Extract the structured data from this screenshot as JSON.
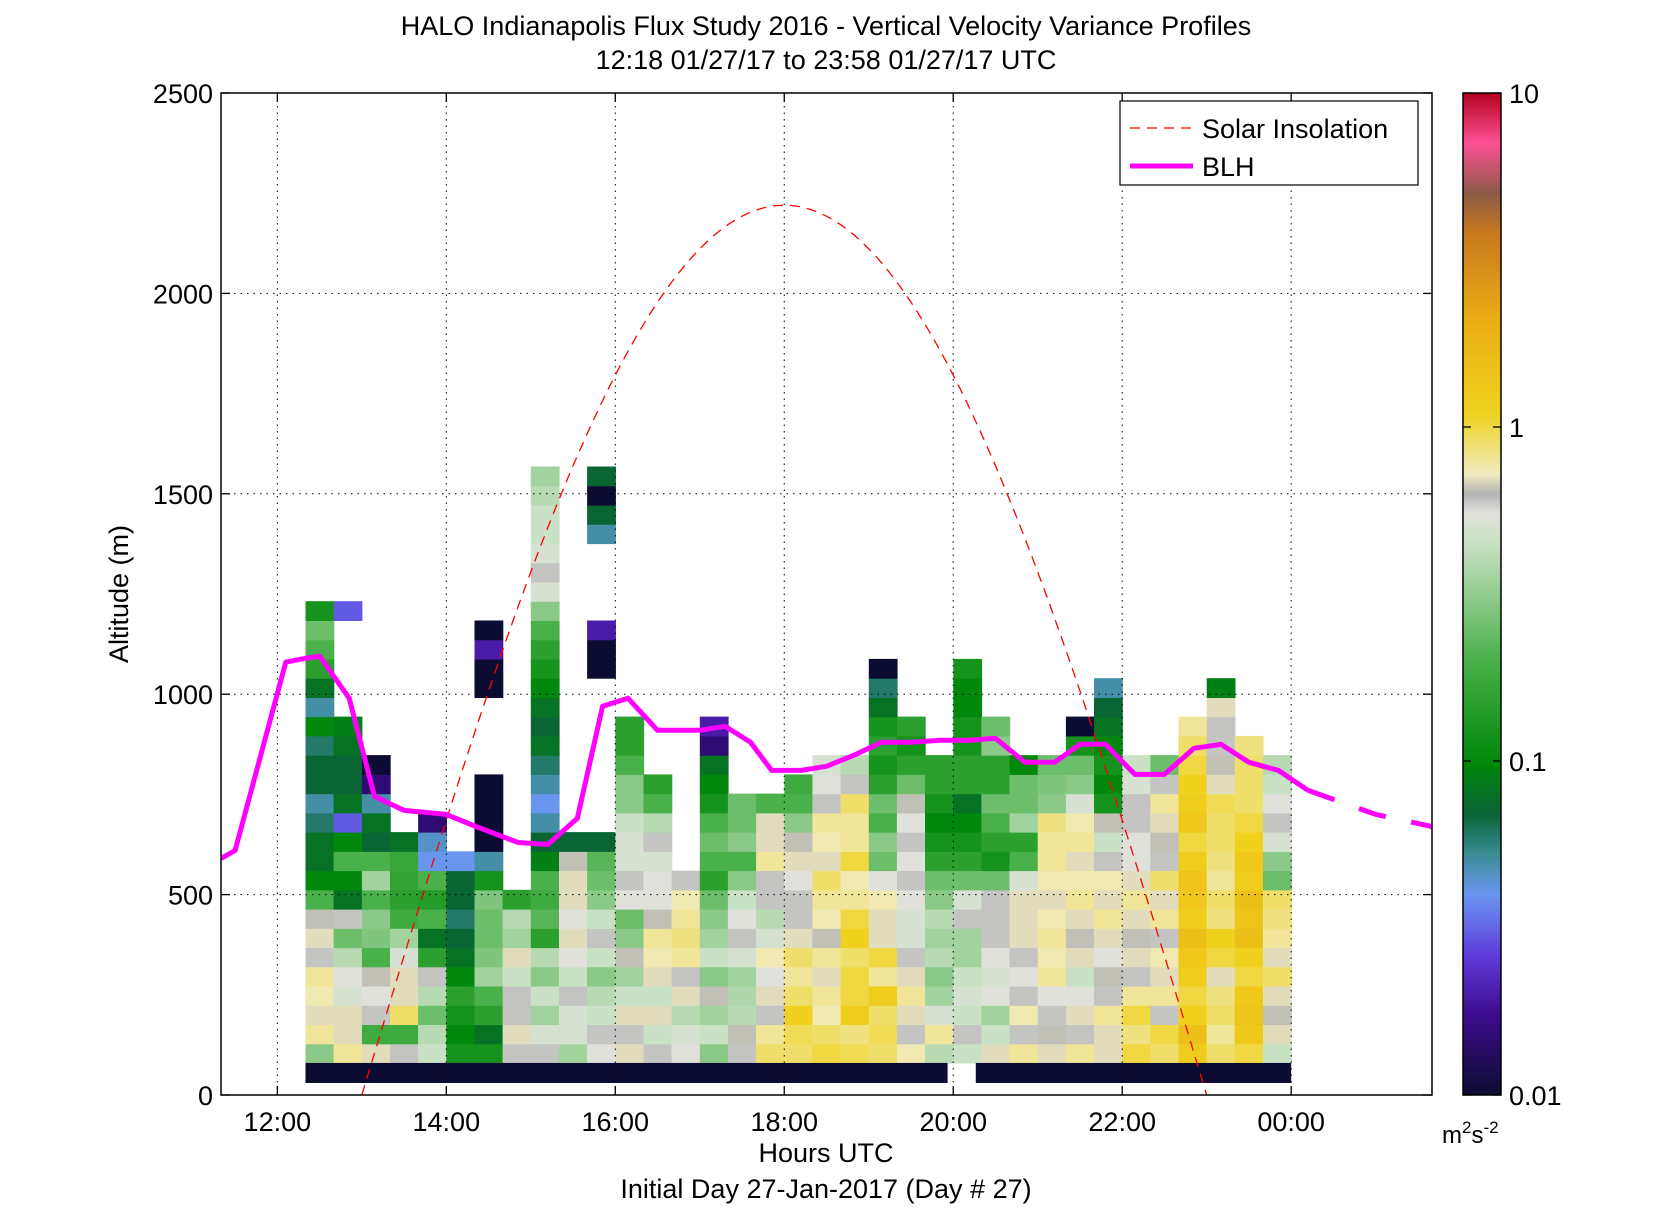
{
  "chart_data": {
    "type": "heatmap",
    "title": "HALO Indianapolis Flux Study 2016 - Vertical Velocity Variance Profiles",
    "subtitle": "12:18 01/27/17 to 23:58 01/27/17  UTC",
    "xlabel": "Hours UTC",
    "ylabel": "Altitude (m)",
    "footer": "Initial Day 27-Jan-2017 (Day # 27)",
    "x_range_hours": [
      11.333,
      25.667
    ],
    "y_range": [
      0,
      2500
    ],
    "x_ticks": [
      {
        "value": 12,
        "label": "12:00"
      },
      {
        "value": 14,
        "label": "14:00"
      },
      {
        "value": 16,
        "label": "16:00"
      },
      {
        "value": 18,
        "label": "18:00"
      },
      {
        "value": 20,
        "label": "20:00"
      },
      {
        "value": 22,
        "label": "22:00"
      },
      {
        "value": 24,
        "label": "00:00"
      }
    ],
    "y_ticks": [
      0,
      500,
      1000,
      1500,
      2000,
      2500
    ],
    "grid": true,
    "legend_position": "top-right",
    "legend": [
      {
        "label": "Solar Insolation",
        "color": "#ff0000",
        "style": "dashed"
      },
      {
        "label": "BLH",
        "color": "#ff00ff",
        "style": "solid"
      }
    ],
    "colorbar": {
      "scale": "log",
      "range": [
        0.01,
        10
      ],
      "ticks": [
        "0.01",
        "0.1",
        "1",
        "10"
      ],
      "unit_main": "m",
      "unit_sup1": "2",
      "unit_mid": "s",
      "unit_sup2": "-2"
    },
    "heatmap_bin_height_m": 48,
    "heatmap_columns": [
      {
        "t": 12.5,
        "levels": [
          0.3,
          0.8,
          0.7,
          0.75,
          0.8,
          0.6,
          0.7,
          0.65,
          0.2,
          0.1,
          0.08,
          0.08,
          0.06,
          0.05,
          0.07,
          0.07,
          0.06,
          0.1,
          0.05,
          0.08,
          0.15,
          0.2,
          0.25,
          0.12
        ]
      },
      {
        "t": 12.833,
        "levels": [
          0.8,
          0.7,
          0.7,
          0.5,
          0.55,
          0.4,
          0.25,
          0.6,
          0.08,
          0.1,
          0.2,
          0.1,
          0.03,
          0.08,
          0.07,
          0.07,
          0.08,
          0.09,
          0.0,
          0.0,
          0.0,
          0.0,
          0.0,
          0.03
        ]
      },
      {
        "t": 13.167,
        "levels": [
          0.7,
          0.18,
          0.6,
          0.55,
          0.65,
          0.2,
          0.28,
          0.3,
          0.2,
          0.35,
          0.2,
          0.07,
          0.08,
          0.05,
          0.015,
          0.01
        ]
      },
      {
        "t": 13.5,
        "levels": [
          0.6,
          0.18,
          0.9,
          0.7,
          0.7,
          0.5,
          0.35,
          0.18,
          0.15,
          0.16,
          0.17,
          0.08
        ]
      },
      {
        "t": 13.833,
        "levels": [
          0.45,
          0.4,
          0.25,
          0.4,
          0.6,
          0.15,
          0.08,
          0.2,
          0.14,
          0.2,
          0.04,
          0.045,
          0.015
        ]
      },
      {
        "t": 14.167,
        "levels": [
          0.12,
          0.1,
          0.12,
          0.15,
          0.1,
          0.08,
          0.07,
          0.06,
          0.07,
          0.07,
          0.04
        ]
      },
      {
        "t": 14.5,
        "levels": [
          0.12,
          0.08,
          0.15,
          0.2,
          0.35,
          0.28,
          0.25,
          0.25,
          0.28,
          0.12,
          0.05,
          0.01,
          0.01,
          0.01,
          0.01,
          0.0,
          0.0,
          0.0,
          0.0,
          0.01,
          0.01,
          0.02,
          0.01
        ]
      },
      {
        "t": 14.833,
        "levels": [
          0.6,
          0.7,
          0.6,
          0.6,
          0.45,
          0.7,
          0.35,
          0.4,
          0.15
        ]
      },
      {
        "t": 15.167,
        "levels": [
          0.6,
          0.5,
          0.35,
          0.45,
          0.3,
          0.4,
          0.15,
          0.22,
          0.18,
          0.2,
          0.09,
          0.07,
          0.05,
          0.04,
          0.05,
          0.06,
          0.08,
          0.07,
          0.08,
          0.1,
          0.12,
          0.15,
          0.2,
          0.3,
          0.5,
          0.6,
          0.5,
          0.45,
          0.45,
          0.4,
          0.35
        ]
      },
      {
        "t": 15.5,
        "levels": [
          0.35,
          0.5,
          0.5,
          0.6,
          0.45,
          0.55,
          0.7,
          0.55,
          0.7,
          0.7,
          0.65,
          0.07
        ]
      },
      {
        "t": 15.833,
        "levels": [
          0.55,
          0.6,
          0.45,
          0.4,
          0.3,
          0.45,
          0.6,
          0.45,
          0.3,
          0.25,
          0.22,
          0.07,
          0.0,
          0.0,
          0.0,
          0.0,
          0.0,
          0.0,
          0.0,
          0.0,
          0.01,
          0.01,
          0.02,
          0.0,
          0.0,
          0.0,
          0.0,
          0.05,
          0.07,
          0.01,
          0.07
        ]
      },
      {
        "t": 16.167,
        "levels": [
          0.7,
          0.6,
          0.7,
          0.45,
          0.35,
          0.65,
          0.3,
          0.25,
          0.55,
          0.6,
          0.5,
          0.5,
          0.45,
          0.3,
          0.3,
          0.2,
          0.15,
          0.15
        ]
      },
      {
        "t": 16.5,
        "levels": [
          0.6,
          0.45,
          0.7,
          0.45,
          0.7,
          0.75,
          0.8,
          0.65,
          0.55,
          0.55,
          0.5,
          0.6,
          0.4,
          0.2,
          0.15
        ]
      },
      {
        "t": 16.833,
        "levels": [
          0.55,
          0.5,
          0.4,
          0.7,
          0.6,
          0.8,
          0.85,
          0.8,
          0.75,
          0.6
        ]
      },
      {
        "t": 17.167,
        "levels": [
          0.3,
          0.45,
          0.35,
          0.65,
          0.3,
          0.45,
          0.35,
          0.3,
          0.25,
          0.15,
          0.2,
          0.25,
          0.2,
          0.12,
          0.1,
          0.08,
          0.015,
          0.02
        ]
      },
      {
        "t": 17.5,
        "levels": [
          0.6,
          0.65,
          0.4,
          0.38,
          0.35,
          0.5,
          0.6,
          0.55,
          0.45,
          0.3,
          0.2,
          0.3,
          0.25,
          0.25
        ]
      },
      {
        "t": 17.833,
        "levels": [
          0.9,
          0.8,
          0.6,
          0.7,
          0.55,
          0.75,
          0.5,
          0.4,
          0.6,
          0.6,
          0.8,
          0.7,
          0.7,
          0.2
        ]
      },
      {
        "t": 18.167,
        "levels": [
          0.9,
          0.95,
          1.1,
          0.9,
          0.8,
          0.9,
          0.7,
          0.6,
          0.6,
          0.55,
          0.7,
          0.65,
          0.3,
          0.2,
          0.18
        ]
      },
      {
        "t": 18.5,
        "levels": [
          1.0,
          0.9,
          0.75,
          0.8,
          0.7,
          0.8,
          0.65,
          0.75,
          0.8,
          0.9,
          0.7,
          0.75,
          0.8,
          0.6,
          0.55,
          0.5
        ]
      },
      {
        "t": 18.833,
        "levels": [
          0.95,
          0.85,
          1.2,
          1.0,
          1.0,
          0.9,
          1.1,
          1.0,
          0.8,
          0.75,
          1.0,
          0.8,
          0.8,
          0.9,
          0.6,
          0.4
        ]
      },
      {
        "t": 19.167,
        "levels": [
          0.9,
          0.95,
          0.9,
          1.2,
          0.8,
          1.0,
          0.7,
          0.7,
          0.75,
          0.55,
          0.25,
          0.3,
          0.2,
          0.25,
          0.15,
          0.12,
          0.15,
          0.12,
          0.08,
          0.06,
          0.01
        ]
      },
      {
        "t": 19.5,
        "levels": [
          0.75,
          0.6,
          0.7,
          0.8,
          0.7,
          0.6,
          0.5,
          0.5,
          0.55,
          0.6,
          0.55,
          0.6,
          0.55,
          0.65,
          0.25,
          0.15,
          0.12,
          0.15
        ]
      },
      {
        "t": 19.833,
        "levels": [
          0.4,
          0.8,
          0.5,
          0.35,
          0.3,
          0.4,
          0.35,
          0.4,
          0.3,
          0.25,
          0.15,
          0.12,
          0.1,
          0.12,
          0.15,
          0.15
        ]
      },
      {
        "t": 20.167,
        "levels": [
          0.45,
          0.6,
          0.45,
          0.5,
          0.45,
          0.35,
          0.35,
          0.6,
          0.5,
          0.25,
          0.15,
          0.12,
          0.1,
          0.08,
          0.15,
          0.15,
          0.12,
          0.12,
          0.1,
          0.1,
          0.12
        ]
      },
      {
        "t": 20.5,
        "levels": [
          0.7,
          0.45,
          0.35,
          0.55,
          0.5,
          0.55,
          0.6,
          0.6,
          0.6,
          0.25,
          0.12,
          0.15,
          0.2,
          0.25,
          0.15,
          0.15,
          0.3,
          0.25
        ]
      },
      {
        "t": 20.833,
        "levels": [
          0.8,
          0.6,
          0.75,
          0.6,
          0.55,
          0.6,
          0.7,
          0.7,
          0.7,
          0.5,
          0.2,
          0.15,
          0.35,
          0.25,
          0.25,
          0.1
        ]
      },
      {
        "t": 21.167,
        "levels": [
          0.7,
          0.65,
          0.6,
          0.55,
          0.8,
          0.75,
          0.8,
          0.75,
          0.7,
          0.75,
          0.8,
          0.8,
          0.85,
          0.3,
          0.28,
          0.25
        ]
      },
      {
        "t": 21.5,
        "levels": [
          0.8,
          0.6,
          0.7,
          0.55,
          0.45,
          0.7,
          0.65,
          0.7,
          0.8,
          0.75,
          0.7,
          0.8,
          0.75,
          0.5,
          0.3,
          0.25,
          0.12,
          0.01
        ]
      },
      {
        "t": 21.833,
        "levels": [
          0.7,
          0.7,
          0.8,
          0.6,
          0.65,
          0.55,
          0.7,
          0.8,
          0.7,
          0.75,
          0.6,
          0.45,
          0.65,
          0.12,
          0.1,
          0.12,
          0.1,
          0.08,
          0.07,
          0.05
        ]
      },
      {
        "t": 22.167,
        "levels": [
          1.0,
          0.85,
          1.0,
          0.8,
          0.6,
          0.7,
          0.65,
          0.7,
          0.8,
          0.7,
          0.55,
          0.55,
          0.6,
          0.6,
          0.5,
          0.45
        ]
      },
      {
        "t": 22.5,
        "levels": [
          0.9,
          1.0,
          0.6,
          0.8,
          0.7,
          0.75,
          0.6,
          0.8,
          0.7,
          0.9,
          0.6,
          0.65,
          0.7,
          0.8,
          0.6,
          0.25
        ]
      },
      {
        "t": 22.833,
        "levels": [
          1.2,
          1.5,
          1.1,
          1.0,
          1.2,
          1.3,
          1.5,
          1.2,
          1.3,
          1.4,
          1.2,
          1.0,
          1.3,
          1.2,
          1.1,
          1.0,
          0.9,
          0.8
        ]
      },
      {
        "t": 23.167,
        "levels": [
          0.9,
          0.8,
          0.9,
          0.85,
          0.7,
          1.0,
          1.1,
          0.85,
          0.9,
          0.8,
          0.85,
          0.9,
          0.9,
          0.95,
          0.7,
          0.65,
          0.6,
          0.6,
          0.7,
          0.09
        ]
      },
      {
        "t": 23.5,
        "levels": [
          1.0,
          1.3,
          1.4,
          1.3,
          1.0,
          1.1,
          1.5,
          1.4,
          1.5,
          1.2,
          1.3,
          1.1,
          1.0,
          0.9,
          0.9,
          0.9,
          0.85
        ]
      },
      {
        "t": 23.833,
        "levels": [
          0.45,
          0.7,
          0.65,
          0.7,
          0.9,
          0.7,
          0.8,
          0.85,
          0.9,
          0.25,
          0.3,
          0.5,
          0.6,
          0.55,
          0.45,
          0.4
        ]
      }
    ],
    "no_data_bars": [
      {
        "t_start": 12.333,
        "t_end": 19.933
      },
      {
        "t_start": 20.267,
        "t_end": 24.0
      }
    ],
    "solar_insolation_curve": [
      {
        "t": 13.0,
        "alt": 0
      },
      {
        "t": 18.0,
        "alt": 2220
      },
      {
        "t": 23.0,
        "alt": 0
      }
    ],
    "blh_series": [
      {
        "t": 11.333,
        "alt": 590
      },
      {
        "t": 11.5,
        "alt": 610
      },
      {
        "t": 12.1,
        "alt": 1080
      },
      {
        "t": 12.35,
        "alt": 1090
      },
      {
        "t": 12.5,
        "alt": 1095
      },
      {
        "t": 12.85,
        "alt": 990
      },
      {
        "t": 13.15,
        "alt": 745
      },
      {
        "t": 13.5,
        "alt": 710
      },
      {
        "t": 14.0,
        "alt": 700
      },
      {
        "t": 14.35,
        "alt": 670
      },
      {
        "t": 14.85,
        "alt": 630
      },
      {
        "t": 15.2,
        "alt": 625
      },
      {
        "t": 15.55,
        "alt": 690
      },
      {
        "t": 15.85,
        "alt": 970
      },
      {
        "t": 16.15,
        "alt": 990
      },
      {
        "t": 16.5,
        "alt": 910
      },
      {
        "t": 17.0,
        "alt": 910
      },
      {
        "t": 17.3,
        "alt": 920
      },
      {
        "t": 17.6,
        "alt": 880
      },
      {
        "t": 17.85,
        "alt": 810
      },
      {
        "t": 18.2,
        "alt": 810
      },
      {
        "t": 18.5,
        "alt": 820
      },
      {
        "t": 18.85,
        "alt": 850
      },
      {
        "t": 19.15,
        "alt": 880
      },
      {
        "t": 19.5,
        "alt": 880
      },
      {
        "t": 19.85,
        "alt": 885
      },
      {
        "t": 20.2,
        "alt": 885
      },
      {
        "t": 20.5,
        "alt": 890
      },
      {
        "t": 20.85,
        "alt": 830
      },
      {
        "t": 21.2,
        "alt": 830
      },
      {
        "t": 21.5,
        "alt": 875
      },
      {
        "t": 21.8,
        "alt": 875
      },
      {
        "t": 22.15,
        "alt": 800
      },
      {
        "t": 22.5,
        "alt": 800
      },
      {
        "t": 22.85,
        "alt": 865
      },
      {
        "t": 23.17,
        "alt": 875
      },
      {
        "t": 23.5,
        "alt": 830
      },
      {
        "t": 23.85,
        "alt": 810
      },
      {
        "t": 24.2,
        "alt": 760
      },
      {
        "t": 25.0,
        "alt": 700
      },
      {
        "t": 25.667,
        "alt": 670
      }
    ]
  }
}
